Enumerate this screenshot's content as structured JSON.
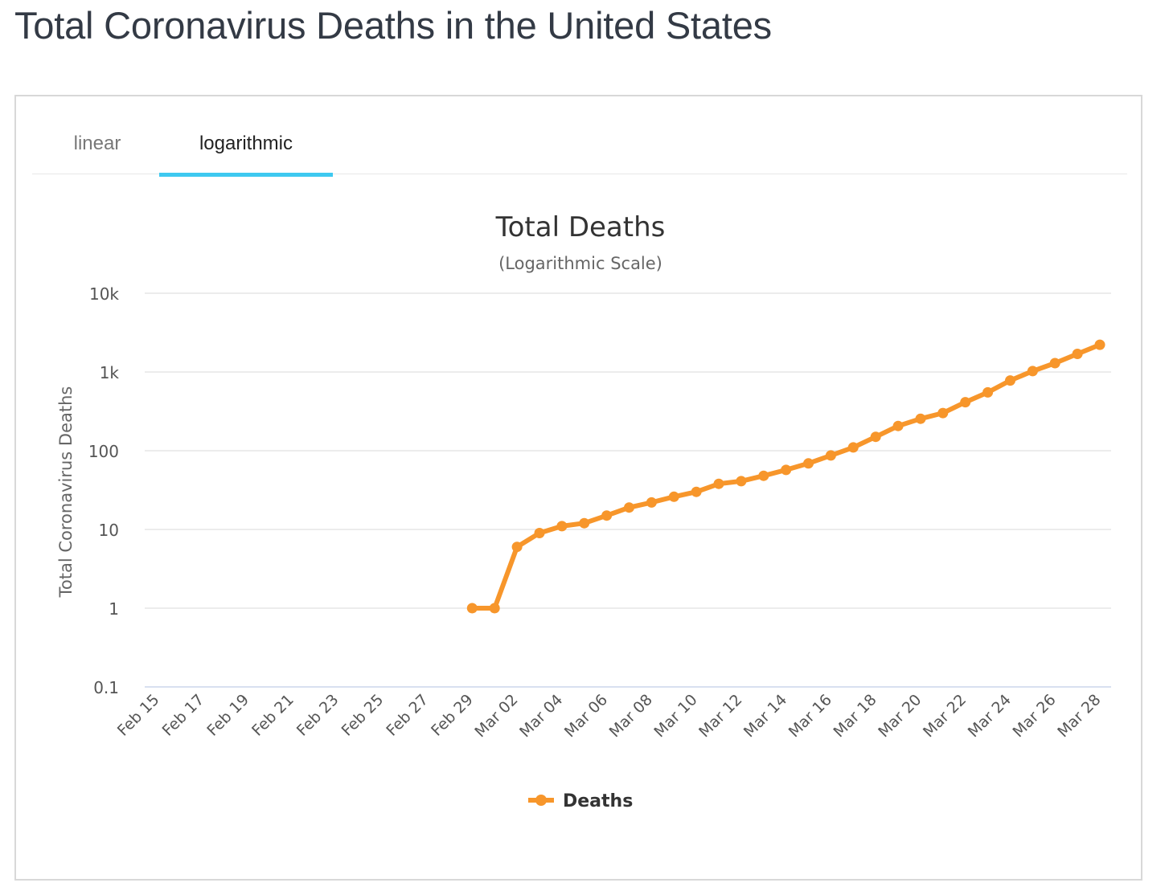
{
  "page": {
    "title": "Total Coronavirus Deaths in the United States"
  },
  "tabs": [
    {
      "label": "linear",
      "active": false
    },
    {
      "label": "logarithmic",
      "active": true
    }
  ],
  "colors": {
    "series": "#f7962b",
    "tab_active": "#3ec9f0",
    "grid": "#e6e6e6"
  },
  "chart_data": {
    "type": "line",
    "title": "Total Deaths",
    "subtitle": "(Logarithmic Scale)",
    "ylabel": "Total Coronavirus Deaths",
    "xlabel": "",
    "yscale": "log",
    "ylim": [
      0.1,
      10000
    ],
    "ytick_labels": [
      "10k",
      "1k",
      "100",
      "10",
      "1",
      "0.1"
    ],
    "ytick_values": [
      10000,
      1000,
      100,
      10,
      1,
      0.1
    ],
    "xtick_labels": [
      "Feb 15",
      "Feb 17",
      "Feb 19",
      "Feb 21",
      "Feb 23",
      "Feb 25",
      "Feb 27",
      "Feb 29",
      "Mar 02",
      "Mar 04",
      "Mar 06",
      "Mar 08",
      "Mar 10",
      "Mar 12",
      "Mar 14",
      "Mar 16",
      "Mar 18",
      "Mar 20",
      "Mar 22",
      "Mar 24",
      "Mar 26",
      "Mar 28"
    ],
    "x": [
      "Feb 15",
      "Feb 16",
      "Feb 17",
      "Feb 18",
      "Feb 19",
      "Feb 20",
      "Feb 21",
      "Feb 22",
      "Feb 23",
      "Feb 24",
      "Feb 25",
      "Feb 26",
      "Feb 27",
      "Feb 28",
      "Feb 29",
      "Mar 01",
      "Mar 02",
      "Mar 03",
      "Mar 04",
      "Mar 05",
      "Mar 06",
      "Mar 07",
      "Mar 08",
      "Mar 09",
      "Mar 10",
      "Mar 11",
      "Mar 12",
      "Mar 13",
      "Mar 14",
      "Mar 15",
      "Mar 16",
      "Mar 17",
      "Mar 18",
      "Mar 19",
      "Mar 20",
      "Mar 21",
      "Mar 22",
      "Mar 23",
      "Mar 24",
      "Mar 25",
      "Mar 26",
      "Mar 27",
      "Mar 28"
    ],
    "series": [
      {
        "name": "Deaths",
        "values": [
          null,
          null,
          null,
          null,
          null,
          null,
          null,
          null,
          null,
          null,
          null,
          null,
          null,
          null,
          1,
          1,
          6,
          9,
          11,
          12,
          15,
          19,
          22,
          26,
          30,
          38,
          41,
          48,
          57,
          69,
          87,
          110,
          150,
          206,
          255,
          301,
          413,
          550,
          780,
          1027,
          1295,
          1695,
          2220
        ]
      }
    ],
    "grid": true,
    "legend": "bottom-center"
  }
}
